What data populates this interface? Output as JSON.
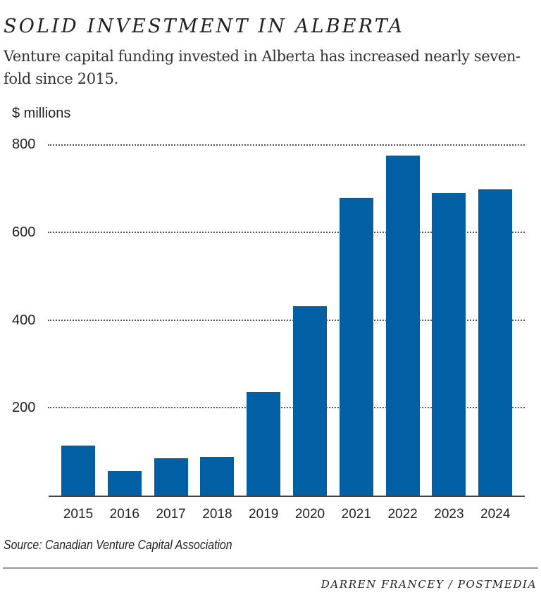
{
  "header": {
    "title": "SOLID INVESTMENT IN ALBERTA",
    "subtitle": "Venture capital funding invested in Alberta has increased nearly seven-fold since 2015."
  },
  "chart": {
    "unit_label": "$ millions",
    "yticks": [
      "800",
      "600",
      "400",
      "200"
    ],
    "xticks": [
      "2015",
      "2016",
      "2017",
      "2018",
      "2019",
      "2020",
      "2021",
      "2022",
      "2023",
      "2024"
    ],
    "bar_color": "#0060A3"
  },
  "footer": {
    "source": "Source: Canadian Venture Capital Association",
    "credit": "DARREN FRANCEY / POSTMEDIA"
  },
  "chart_data": {
    "type": "bar",
    "title": "SOLID INVESTMENT IN ALBERTA",
    "subtitle": "Venture capital funding invested in Alberta has increased nearly seven-fold since 2015.",
    "xlabel": "",
    "ylabel": "$ millions",
    "categories": [
      "2015",
      "2016",
      "2017",
      "2018",
      "2019",
      "2020",
      "2021",
      "2022",
      "2023",
      "2024"
    ],
    "values": [
      116,
      57,
      87,
      89,
      237,
      432,
      679,
      775,
      690,
      697
    ],
    "ylim": [
      0,
      800
    ],
    "yticks": [
      200,
      400,
      600,
      800
    ],
    "grid": "horizontal dotted",
    "legend": "none",
    "color": "#0060A3",
    "source": "Source: Canadian Venture Capital Association",
    "credit": "DARREN FRANCEY / POSTMEDIA"
  }
}
